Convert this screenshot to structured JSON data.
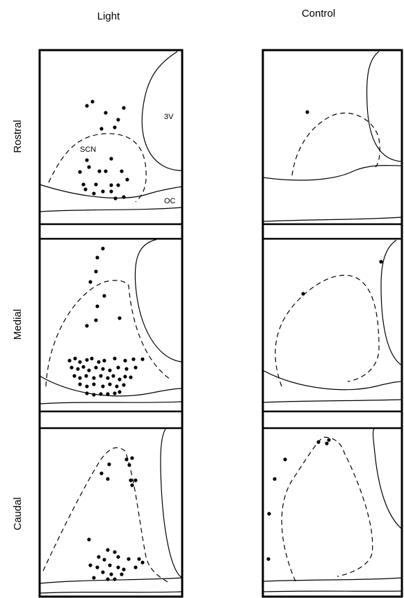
{
  "columns": [
    "Light",
    "Control"
  ],
  "rows": [
    "Rostral",
    "Medial",
    "Caudal"
  ],
  "annotations": {
    "third_ventricle": "3V",
    "scn": "SCN",
    "optic_chiasm": "OC"
  }
}
